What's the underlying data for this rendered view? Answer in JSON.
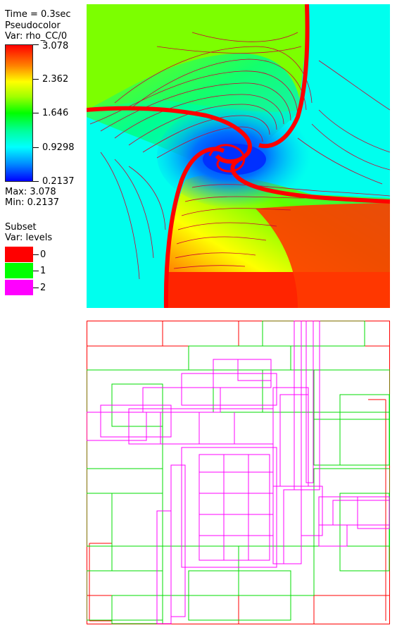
{
  "header": {
    "time_text": "Time = 0.3sec",
    "plot_type": "Pseudocolor",
    "var_text": "Var: rho_CC/0"
  },
  "colorbar": {
    "ticks": [
      "3.078",
      "2.362",
      "1.646",
      "0.9298",
      "0.2137"
    ],
    "max_text": "Max:  3.078",
    "min_text": "Min:  0.2137",
    "colors": [
      "#ff0000",
      "#ffff00",
      "#00ff00",
      "#00ffff",
      "#0000ff"
    ]
  },
  "subset": {
    "title": "Subset",
    "var_text": "Var: levels",
    "levels": [
      {
        "label": "0",
        "color": "#ff0000"
      },
      {
        "label": "1",
        "color": "#00ff00"
      },
      {
        "label": "2",
        "color": "#ff00ff"
      }
    ]
  },
  "field": {
    "colors": {
      "high": "#ff1a00",
      "mid_green": "#80ff00",
      "low_cyan": "#00ffee",
      "vortex_blue": "#0044ff",
      "contour": "#cc0033"
    }
  },
  "mesh": {
    "colors": {
      "level0": "#ff0000",
      "level1": "#00dd00",
      "level2": "#ff00ff"
    }
  }
}
